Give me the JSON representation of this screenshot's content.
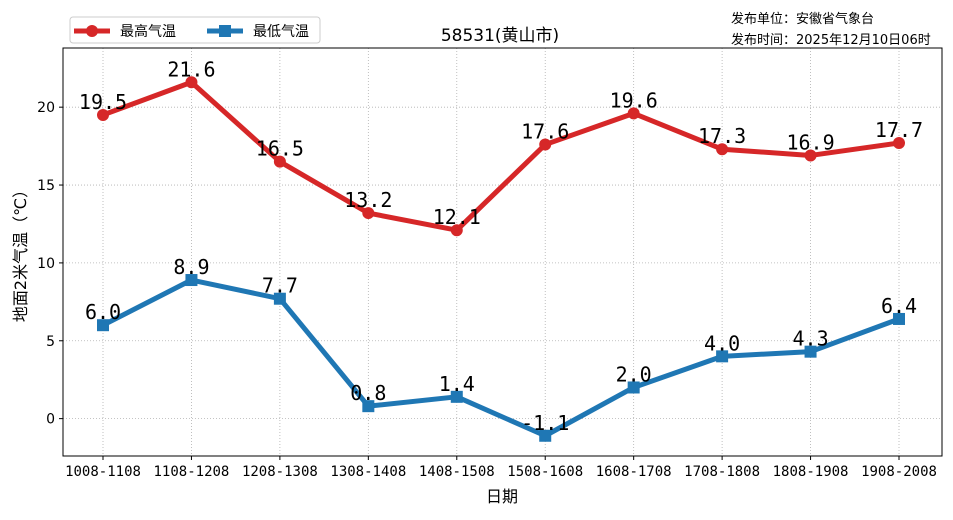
{
  "chart_data": {
    "type": "line",
    "title": "58531(黄山市)",
    "publisher_line": "发布单位：安徽省气象台",
    "publish_time_line": "发布时间：2025年12月10日06时",
    "xlabel": "日期",
    "ylabel": "地面2米气温（℃）",
    "categories": [
      "1008-1108",
      "1108-1208",
      "1208-1308",
      "1308-1408",
      "1408-1508",
      "1508-1608",
      "1608-1708",
      "1708-1808",
      "1808-1908",
      "1908-2008"
    ],
    "ylim": [
      -2.4,
      23.8
    ],
    "yticks": [
      0,
      5,
      10,
      15,
      20
    ],
    "grid": true,
    "legend": "top-left",
    "series": [
      {
        "name": "最高气温",
        "color": "#d62728",
        "marker": "circle",
        "values": [
          19.5,
          21.6,
          16.5,
          13.2,
          12.1,
          17.6,
          19.6,
          17.3,
          16.9,
          17.7
        ]
      },
      {
        "name": "最低气温",
        "color": "#1f77b4",
        "marker": "square",
        "values": [
          6.0,
          8.9,
          7.7,
          0.8,
          1.4,
          -1.1,
          2.0,
          4.0,
          4.3,
          6.4
        ]
      }
    ]
  }
}
